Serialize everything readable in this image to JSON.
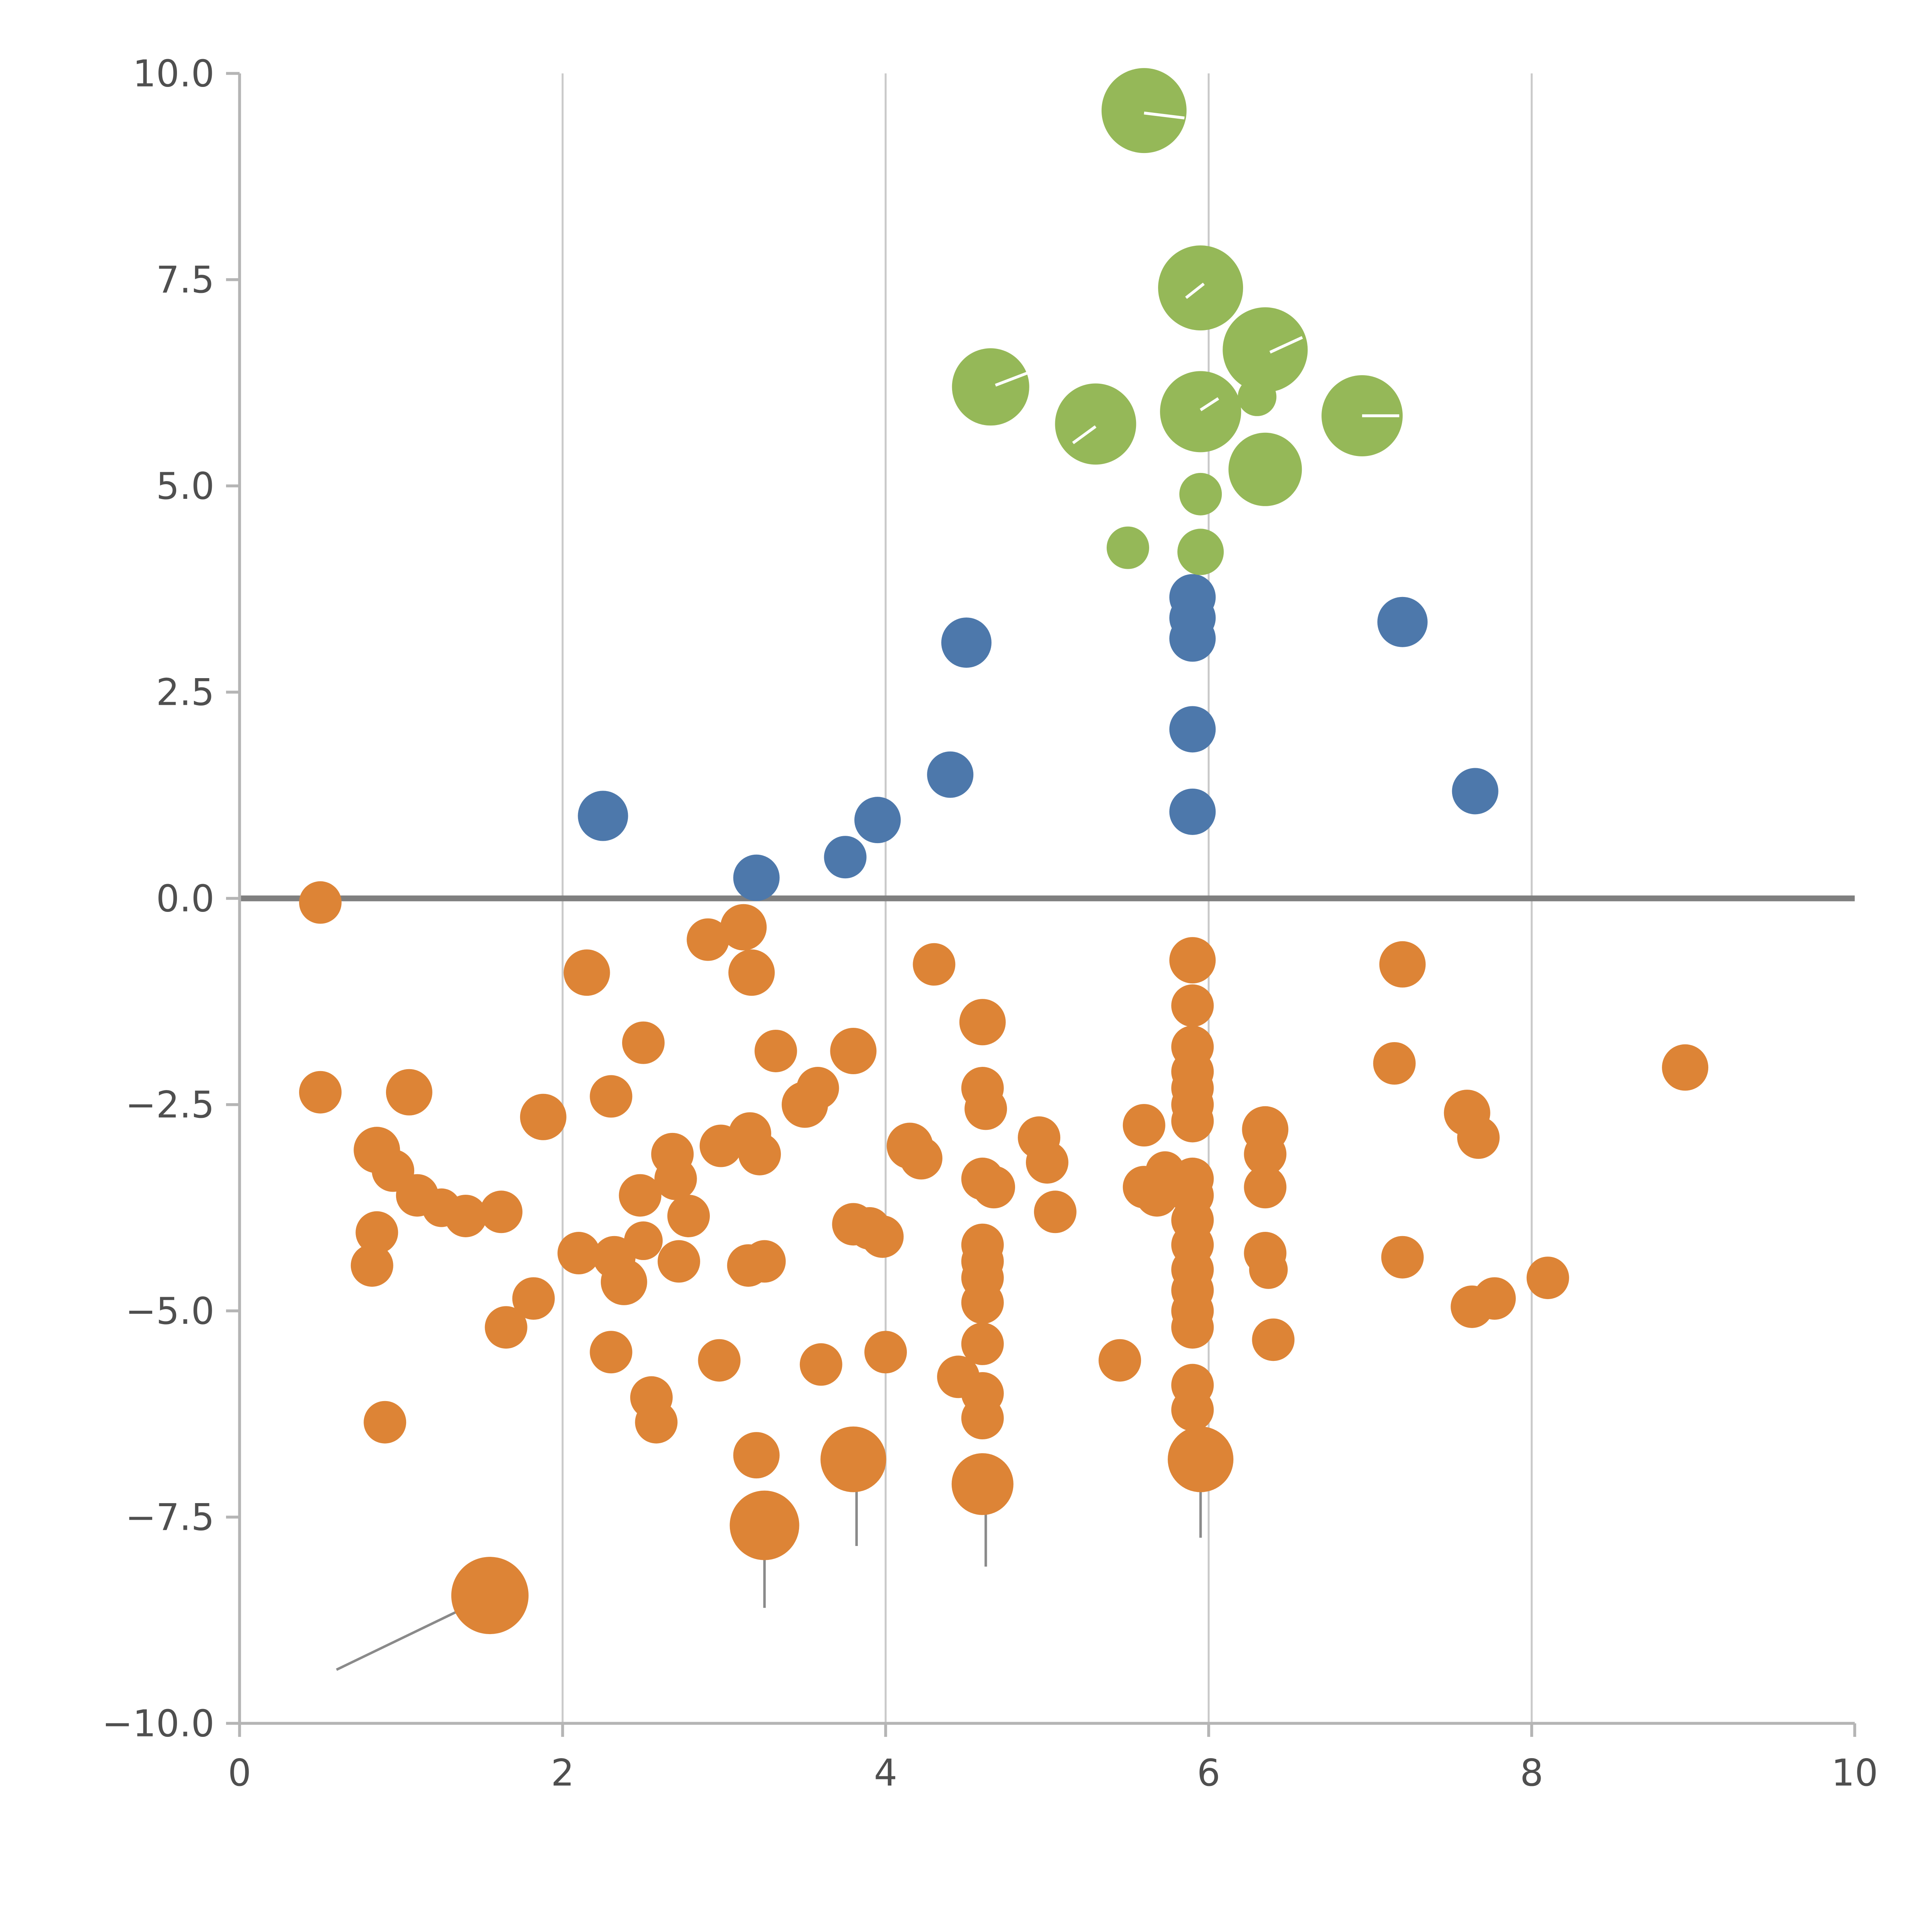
{
  "page": {
    "background": "#ffffff"
  },
  "chart_data": {
    "type": "scatter",
    "title": "",
    "subtitle": "",
    "xlabel": "",
    "ylabel": "",
    "legend": "none",
    "xlim": [
      0,
      10
    ],
    "ylim": [
      -10,
      10
    ],
    "grid": "vertical-only",
    "x_ticks": [
      {
        "value": 0,
        "label": "0"
      },
      {
        "value": 2,
        "label": "2"
      },
      {
        "value": 4,
        "label": "4"
      },
      {
        "value": 6,
        "label": "6"
      },
      {
        "value": 8,
        "label": "8"
      },
      {
        "value": 10,
        "label": "10"
      }
    ],
    "y_ticks": [
      {
        "value": 10,
        "label": "10.0"
      },
      {
        "value": 7.5,
        "label": "7.5"
      },
      {
        "value": 5,
        "label": "5.0"
      },
      {
        "value": 2.5,
        "label": "2.5"
      },
      {
        "value": 0,
        "label": "0.0"
      },
      {
        "value": -2.5,
        "label": "−2.5"
      },
      {
        "value": -5,
        "label": "−5.0"
      },
      {
        "value": -7.5,
        "label": "−7.5"
      },
      {
        "value": -10,
        "label": "−10.0"
      }
    ],
    "gridlines": {
      "x_values": [
        2,
        4,
        6,
        8
      ],
      "color": "#c9c9c9",
      "width": 1
    },
    "zero_line": {
      "y": 0,
      "color": "#7f7f7f",
      "width": 3
    },
    "axis": {
      "spine_color": "#b5b5b5",
      "tick_color": "#b5b5b5",
      "label_color": "#4f4f4f",
      "font_size": 19
    },
    "series": [
      {
        "name": "orange",
        "color": "#dd8436",
        "points": [
          [
            0.5,
            -0.05,
            11
          ],
          [
            0.5,
            -2.35,
            11
          ],
          [
            1.05,
            -2.35,
            12
          ],
          [
            0.85,
            -3.05,
            12
          ],
          [
            0.95,
            -3.3,
            11
          ],
          [
            0.85,
            -4.05,
            11
          ],
          [
            0.82,
            -4.45,
            11
          ],
          [
            1.1,
            -3.6,
            11
          ],
          [
            1.25,
            -3.75,
            10
          ],
          [
            1.4,
            -3.85,
            11
          ],
          [
            1.62,
            -3.8,
            11
          ],
          [
            0.9,
            -6.35,
            11
          ],
          [
            1.55,
            -8.45,
            20
          ],
          [
            1.65,
            -5.2,
            11
          ],
          [
            1.82,
            -4.85,
            11
          ],
          [
            1.88,
            -2.65,
            12
          ],
          [
            2.15,
            -0.9,
            12
          ],
          [
            2.1,
            -4.3,
            11
          ],
          [
            2.3,
            -2.4,
            11
          ],
          [
            2.32,
            -4.35,
            11
          ],
          [
            2.38,
            -4.65,
            12
          ],
          [
            2.3,
            -5.5,
            11
          ],
          [
            2.48,
            -3.6,
            11
          ],
          [
            2.5,
            -4.15,
            10
          ],
          [
            2.5,
            -1.75,
            11
          ],
          [
            2.55,
            -6.05,
            11
          ],
          [
            2.58,
            -6.35,
            11
          ],
          [
            2.68,
            -3.1,
            11
          ],
          [
            2.7,
            -3.4,
            11
          ],
          [
            2.72,
            -4.4,
            11
          ],
          [
            2.78,
            -3.85,
            11
          ],
          [
            2.9,
            -0.5,
            11
          ],
          [
            2.98,
            -3.0,
            11
          ],
          [
            2.97,
            -5.6,
            11
          ],
          [
            3.12,
            -0.35,
            12
          ],
          [
            3.17,
            -0.9,
            12
          ],
          [
            3.16,
            -2.85,
            11
          ],
          [
            3.22,
            -3.1,
            11
          ],
          [
            3.15,
            -4.45,
            11
          ],
          [
            3.25,
            -4.4,
            11
          ],
          [
            3.32,
            -1.85,
            11
          ],
          [
            3.2,
            -6.75,
            12
          ],
          [
            3.25,
            -7.6,
            18
          ],
          [
            3.5,
            -2.5,
            12
          ],
          [
            3.58,
            -2.3,
            11
          ],
          [
            3.6,
            -5.65,
            11
          ],
          [
            3.8,
            -1.85,
            12
          ],
          [
            3.8,
            -3.95,
            11
          ],
          [
            3.9,
            -4.0,
            11
          ],
          [
            3.8,
            -6.8,
            17
          ],
          [
            3.98,
            -4.1,
            11
          ],
          [
            4.0,
            -5.5,
            11
          ],
          [
            4.15,
            -3.0,
            12
          ],
          [
            4.22,
            -3.15,
            11
          ],
          [
            4.3,
            -0.8,
            11
          ],
          [
            4.45,
            -5.8,
            11
          ],
          [
            4.6,
            -1.5,
            12
          ],
          [
            4.6,
            -2.3,
            11
          ],
          [
            4.62,
            -2.55,
            11
          ],
          [
            4.6,
            -3.4,
            11
          ],
          [
            4.67,
            -3.5,
            11
          ],
          [
            4.6,
            -4.2,
            11
          ],
          [
            4.6,
            -4.4,
            11
          ],
          [
            4.6,
            -4.6,
            11
          ],
          [
            4.6,
            -4.9,
            11
          ],
          [
            4.6,
            -5.4,
            11
          ],
          [
            4.6,
            -6.0,
            11
          ],
          [
            4.6,
            -6.3,
            11
          ],
          [
            4.6,
            -7.1,
            16
          ],
          [
            4.95,
            -2.9,
            11
          ],
          [
            5.0,
            -3.2,
            11
          ],
          [
            5.05,
            -3.8,
            11
          ],
          [
            5.45,
            -5.6,
            11
          ],
          [
            5.6,
            -2.75,
            11
          ],
          [
            5.6,
            -3.5,
            11
          ],
          [
            5.68,
            -3.6,
            11
          ],
          [
            5.73,
            -3.3,
            10
          ],
          [
            5.9,
            -0.75,
            12
          ],
          [
            5.9,
            -1.3,
            11
          ],
          [
            5.9,
            -1.8,
            11
          ],
          [
            5.9,
            -2.1,
            11
          ],
          [
            5.9,
            -2.3,
            11
          ],
          [
            5.9,
            -2.5,
            11
          ],
          [
            5.9,
            -2.7,
            11
          ],
          [
            5.9,
            -3.4,
            11
          ],
          [
            5.9,
            -3.6,
            11
          ],
          [
            5.9,
            -3.9,
            11
          ],
          [
            5.9,
            -4.2,
            11
          ],
          [
            5.9,
            -4.5,
            11
          ],
          [
            5.9,
            -4.75,
            11
          ],
          [
            5.9,
            -5.0,
            11
          ],
          [
            5.9,
            -5.2,
            11
          ],
          [
            5.9,
            -5.9,
            11
          ],
          [
            5.9,
            -6.2,
            11
          ],
          [
            5.95,
            -6.8,
            17
          ],
          [
            6.35,
            -2.8,
            12
          ],
          [
            6.35,
            -3.1,
            11
          ],
          [
            6.35,
            -3.5,
            11
          ],
          [
            6.35,
            -4.3,
            11
          ],
          [
            6.37,
            -4.5,
            10
          ],
          [
            6.4,
            -5.35,
            11
          ],
          [
            7.2,
            -0.8,
            12
          ],
          [
            7.15,
            -2.0,
            11
          ],
          [
            7.2,
            -4.35,
            11
          ],
          [
            7.6,
            -2.6,
            12
          ],
          [
            7.67,
            -2.9,
            11
          ],
          [
            7.63,
            -4.95,
            11
          ],
          [
            7.77,
            -4.85,
            11
          ],
          [
            8.1,
            -4.6,
            11
          ],
          [
            8.95,
            -2.05,
            12
          ]
        ]
      },
      {
        "name": "blue",
        "color": "#4d78ab",
        "points": [
          [
            2.25,
            1.0,
            13
          ],
          [
            3.2,
            0.25,
            12
          ],
          [
            3.75,
            0.5,
            11
          ],
          [
            3.95,
            0.95,
            12
          ],
          [
            4.4,
            1.5,
            12
          ],
          [
            4.5,
            3.1,
            13
          ],
          [
            5.9,
            3.65,
            12
          ],
          [
            5.9,
            3.4,
            12
          ],
          [
            5.9,
            3.15,
            12
          ],
          [
            5.9,
            2.05,
            12
          ],
          [
            5.9,
            1.05,
            12
          ],
          [
            7.2,
            3.35,
            13
          ],
          [
            7.65,
            1.3,
            12
          ]
        ]
      },
      {
        "name": "green",
        "color": "#95b858",
        "points": [
          [
            5.6,
            9.55,
            22
          ],
          [
            5.95,
            7.4,
            22
          ],
          [
            6.35,
            6.65,
            22
          ],
          [
            4.65,
            6.2,
            20
          ],
          [
            5.3,
            5.75,
            21
          ],
          [
            5.95,
            5.9,
            21
          ],
          [
            6.95,
            5.85,
            21
          ],
          [
            6.35,
            5.2,
            19
          ],
          [
            6.3,
            6.08,
            10
          ],
          [
            5.95,
            4.9,
            11
          ],
          [
            5.5,
            4.25,
            11
          ],
          [
            5.95,
            4.2,
            12
          ]
        ]
      }
    ],
    "annotation_lines": [
      {
        "x1": 1.5,
        "y1": -8.5,
        "x2": 0.6,
        "y2": -9.35,
        "color": "#8a8a8a",
        "width": 1.3
      },
      {
        "x1": 3.25,
        "y1": -7.85,
        "x2": 3.25,
        "y2": -8.6,
        "color": "#8a8a8a",
        "width": 1.3
      },
      {
        "x1": 3.82,
        "y1": -7.0,
        "x2": 3.82,
        "y2": -7.85,
        "color": "#8a8a8a",
        "width": 1.3
      },
      {
        "x1": 4.62,
        "y1": -7.3,
        "x2": 4.62,
        "y2": -8.1,
        "color": "#8a8a8a",
        "width": 1.3
      },
      {
        "x1": 5.95,
        "y1": -7.0,
        "x2": 5.95,
        "y2": -7.75,
        "color": "#8a8a8a",
        "width": 1.3
      }
    ],
    "highlight_lines": [
      {
        "x1": 5.6,
        "y1": 9.52,
        "x2": 5.85,
        "y2": 9.46,
        "color": "#ffffff",
        "width": 1.5
      },
      {
        "x1": 5.97,
        "y1": 7.45,
        "x2": 5.86,
        "y2": 7.28,
        "color": "#ffffff",
        "width": 1.5
      },
      {
        "x1": 6.38,
        "y1": 6.62,
        "x2": 6.58,
        "y2": 6.8,
        "color": "#ffffff",
        "width": 1.5
      },
      {
        "x1": 4.68,
        "y1": 6.22,
        "x2": 4.92,
        "y2": 6.4,
        "color": "#ffffff",
        "width": 1.5
      },
      {
        "x1": 5.3,
        "y1": 5.72,
        "x2": 5.16,
        "y2": 5.52,
        "color": "#ffffff",
        "width": 1.5
      },
      {
        "x1": 5.95,
        "y1": 5.92,
        "x2": 6.06,
        "y2": 6.06,
        "color": "#ffffff",
        "width": 1.5
      },
      {
        "x1": 6.95,
        "y1": 5.85,
        "x2": 7.18,
        "y2": 5.85,
        "color": "#ffffff",
        "width": 1.5
      }
    ]
  }
}
